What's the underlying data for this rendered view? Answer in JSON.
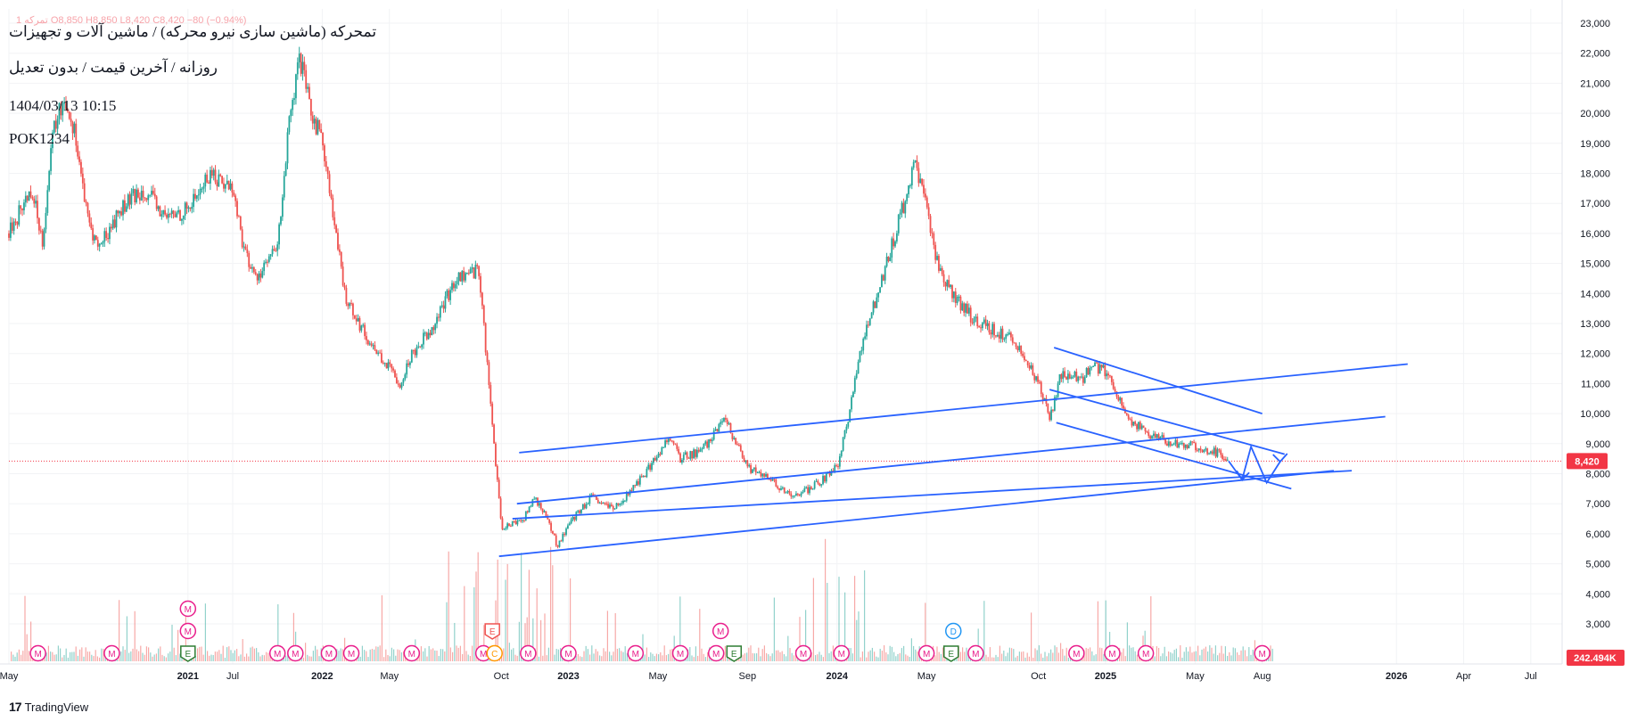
{
  "header": {
    "ohlc": "1 تمرکه  O8,850  H8,850  L8,420  C8,420  −80 (−0.94%)",
    "title": "تمحرکه (ماشین سازی نیرو محرکه) / ماشین آلات و تجهیزات",
    "subtitle": "روزانه / آخرین قیمت / بدون تعدیل",
    "datetime": "1404/03/13 10:15",
    "code": "POK1234"
  },
  "footer": {
    "brand": "TradingView",
    "logo": "17"
  },
  "colors": {
    "up": "#26a69a",
    "down": "#ef5350",
    "line": "#2962ff",
    "event": "#e91e8c",
    "earnings": "#2e7d32",
    "price_label": "#f23645"
  },
  "chart_data": {
    "type": "candlestick",
    "y_axis": {
      "min": 2000,
      "max": 23000,
      "ticks": [
        3000,
        4000,
        5000,
        6000,
        7000,
        8000,
        9000,
        10000,
        11000,
        12000,
        13000,
        14000,
        15000,
        16000,
        17000,
        18000,
        19000,
        20000,
        21000,
        22000,
        23000
      ],
      "tick_labels": [
        "3,000",
        "4,000",
        "5,000",
        "6,000",
        "7,000",
        "8,000",
        "9,000",
        "10,000",
        "11,000",
        "12,000",
        "13,000",
        "14,000",
        "15,000",
        "16,000",
        "17,000",
        "18,000",
        "19,000",
        "20,000",
        "21,000",
        "22,000",
        "23,000"
      ]
    },
    "x_axis": {
      "ticks": [
        {
          "t": 0,
          "label": "May"
        },
        {
          "t": 8,
          "label": "2021"
        },
        {
          "t": 10,
          "label": "Jul"
        },
        {
          "t": 14,
          "label": "2022"
        },
        {
          "t": 17,
          "label": "May"
        },
        {
          "t": 22,
          "label": "Oct"
        },
        {
          "t": 25,
          "label": "2023"
        },
        {
          "t": 29,
          "label": "May"
        },
        {
          "t": 33,
          "label": "Sep"
        },
        {
          "t": 37,
          "label": "2024"
        },
        {
          "t": 41,
          "label": "May"
        },
        {
          "t": 46,
          "label": "Oct"
        },
        {
          "t": 49,
          "label": "2025"
        },
        {
          "t": 53,
          "label": "May"
        },
        {
          "t": 56,
          "label": "Aug"
        },
        {
          "t": 62,
          "label": "2026"
        },
        {
          "t": 65,
          "label": "Apr"
        },
        {
          "t": 68,
          "label": "Jul"
        }
      ],
      "bold": [
        "2021",
        "2022",
        "2023",
        "2024",
        "2025",
        "2026"
      ]
    },
    "last_price": 8420,
    "last_price_label": "8,420",
    "volume_label": "242.494K",
    "price_path": [
      [
        0,
        16000
      ],
      [
        1,
        17500
      ],
      [
        1.5,
        15800
      ],
      [
        2,
        19500
      ],
      [
        2.5,
        20500
      ],
      [
        3,
        19200
      ],
      [
        3.5,
        16500
      ],
      [
        4,
        15500
      ],
      [
        5,
        16800
      ],
      [
        6,
        17500
      ],
      [
        7,
        16500
      ],
      [
        8,
        16800
      ],
      [
        9,
        18000
      ],
      [
        10,
        17500
      ],
      [
        10.5,
        15500
      ],
      [
        11,
        14500
      ],
      [
        12,
        15500
      ],
      [
        12.5,
        19500
      ],
      [
        13,
        21800
      ],
      [
        13.5,
        20000
      ],
      [
        14,
        19200
      ],
      [
        14.5,
        16500
      ],
      [
        15,
        14000
      ],
      [
        16,
        12500
      ],
      [
        17,
        11500
      ],
      [
        17.5,
        11000
      ],
      [
        18,
        12000
      ],
      [
        19,
        13000
      ],
      [
        20,
        14500
      ],
      [
        21,
        14800
      ],
      [
        22,
        6200
      ],
      [
        23,
        6500
      ],
      [
        23.5,
        7200
      ],
      [
        24,
        6600
      ],
      [
        24.5,
        5600
      ],
      [
        25,
        6300
      ],
      [
        26,
        7200
      ],
      [
        27,
        6800
      ],
      [
        28,
        7600
      ],
      [
        29,
        8600
      ],
      [
        29.5,
        9300
      ],
      [
        30,
        8500
      ],
      [
        31,
        8800
      ],
      [
        32,
        9800
      ],
      [
        33,
        8200
      ],
      [
        34,
        7800
      ],
      [
        35,
        7200
      ],
      [
        36,
        7600
      ],
      [
        37,
        8200
      ],
      [
        37.5,
        9800
      ],
      [
        38,
        12000
      ],
      [
        39,
        14500
      ],
      [
        40,
        17000
      ],
      [
        40.5,
        18300
      ],
      [
        41,
        16800
      ],
      [
        41.5,
        15000
      ],
      [
        42,
        14200
      ],
      [
        43,
        13200
      ],
      [
        44,
        12800
      ],
      [
        45,
        12400
      ],
      [
        46,
        11000
      ],
      [
        46.5,
        9800
      ],
      [
        47,
        11300
      ],
      [
        48,
        11200
      ],
      [
        48.5,
        11600
      ],
      [
        49,
        11400
      ],
      [
        49.5,
        10700
      ],
      [
        50,
        9800
      ],
      [
        51,
        9300
      ],
      [
        52,
        9000
      ],
      [
        53,
        8900
      ],
      [
        54,
        8700
      ],
      [
        54.5,
        8420
      ]
    ],
    "trend_lines": [
      {
        "name": "upper-channel-top",
        "p1": [
          22.8,
          8700
        ],
        "p2": [
          62.5,
          11650
        ]
      },
      {
        "name": "upper-channel-mid",
        "p1": [
          22.7,
          7000
        ],
        "p2": [
          61.5,
          9900
        ]
      },
      {
        "name": "lower-channel-mid",
        "p1": [
          22.5,
          6500
        ],
        "p2": [
          60,
          8100
        ]
      },
      {
        "name": "lower-channel-bottom",
        "p1": [
          21.9,
          5250
        ],
        "p2": [
          59.2,
          8100
        ]
      },
      {
        "name": "desc-channel-top",
        "p1": [
          46.7,
          12200
        ],
        "p2": [
          56,
          10000
        ]
      },
      {
        "name": "desc-channel-mid",
        "p1": [
          46.5,
          10800
        ],
        "p2": [
          57,
          8650
        ]
      },
      {
        "name": "desc-channel-bottom",
        "p1": [
          46.8,
          9700
        ],
        "p2": [
          57.3,
          7500
        ]
      }
    ],
    "projection": [
      [
        54.5,
        8420
      ],
      [
        55.1,
        7800
      ],
      [
        55.5,
        8900
      ],
      [
        56.2,
        7700
      ],
      [
        56.8,
        8400
      ]
    ],
    "events": [
      {
        "t": 1.3,
        "letter": "M",
        "type": "dividend",
        "row": 0
      },
      {
        "t": 4.6,
        "letter": "M",
        "type": "dividend",
        "row": 0
      },
      {
        "t": 8.0,
        "letter": "M",
        "type": "dividend",
        "row": 2
      },
      {
        "t": 8.0,
        "letter": "M",
        "type": "dividend",
        "row": 1
      },
      {
        "t": 8.0,
        "letter": "E",
        "type": "earnings",
        "row": 0
      },
      {
        "t": 12,
        "letter": "M",
        "type": "dividend",
        "row": 0
      },
      {
        "t": 12.8,
        "letter": "M",
        "type": "dividend",
        "row": 0
      },
      {
        "t": 14.3,
        "letter": "M",
        "type": "dividend",
        "row": 0
      },
      {
        "t": 15.3,
        "letter": "M",
        "type": "dividend",
        "row": 0
      },
      {
        "t": 18,
        "letter": "M",
        "type": "dividend",
        "row": 0
      },
      {
        "t": 21.2,
        "letter": "M",
        "type": "dividend",
        "row": 0
      },
      {
        "t": 21.6,
        "letter": "E",
        "type": "earnings-red",
        "row": 1
      },
      {
        "t": 21.7,
        "letter": "C",
        "type": "split",
        "row": 0
      },
      {
        "t": 23.2,
        "letter": "M",
        "type": "dividend",
        "row": 0
      },
      {
        "t": 25,
        "letter": "M",
        "type": "dividend",
        "row": 0
      },
      {
        "t": 28,
        "letter": "M",
        "type": "dividend",
        "row": 0
      },
      {
        "t": 30,
        "letter": "M",
        "type": "dividend",
        "row": 0
      },
      {
        "t": 31.6,
        "letter": "M",
        "type": "dividend",
        "row": 0
      },
      {
        "t": 31.8,
        "letter": "M",
        "type": "dividend",
        "row": 1
      },
      {
        "t": 32.4,
        "letter": "E",
        "type": "earnings",
        "row": 0
      },
      {
        "t": 35.5,
        "letter": "M",
        "type": "dividend",
        "row": 0
      },
      {
        "t": 37.2,
        "letter": "M",
        "type": "dividend",
        "row": 0
      },
      {
        "t": 41,
        "letter": "M",
        "type": "dividend",
        "row": 0
      },
      {
        "t": 42.1,
        "letter": "E",
        "type": "earnings",
        "row": 0
      },
      {
        "t": 42.2,
        "letter": "D",
        "type": "dividend-blue",
        "row": 1
      },
      {
        "t": 43.2,
        "letter": "M",
        "type": "dividend",
        "row": 0
      },
      {
        "t": 47.7,
        "letter": "M",
        "type": "dividend",
        "row": 0
      },
      {
        "t": 49.3,
        "letter": "M",
        "type": "dividend",
        "row": 0
      },
      {
        "t": 50.8,
        "letter": "M",
        "type": "dividend",
        "row": 0
      },
      {
        "t": 56,
        "letter": "M",
        "type": "dividend",
        "row": 0
      }
    ]
  }
}
